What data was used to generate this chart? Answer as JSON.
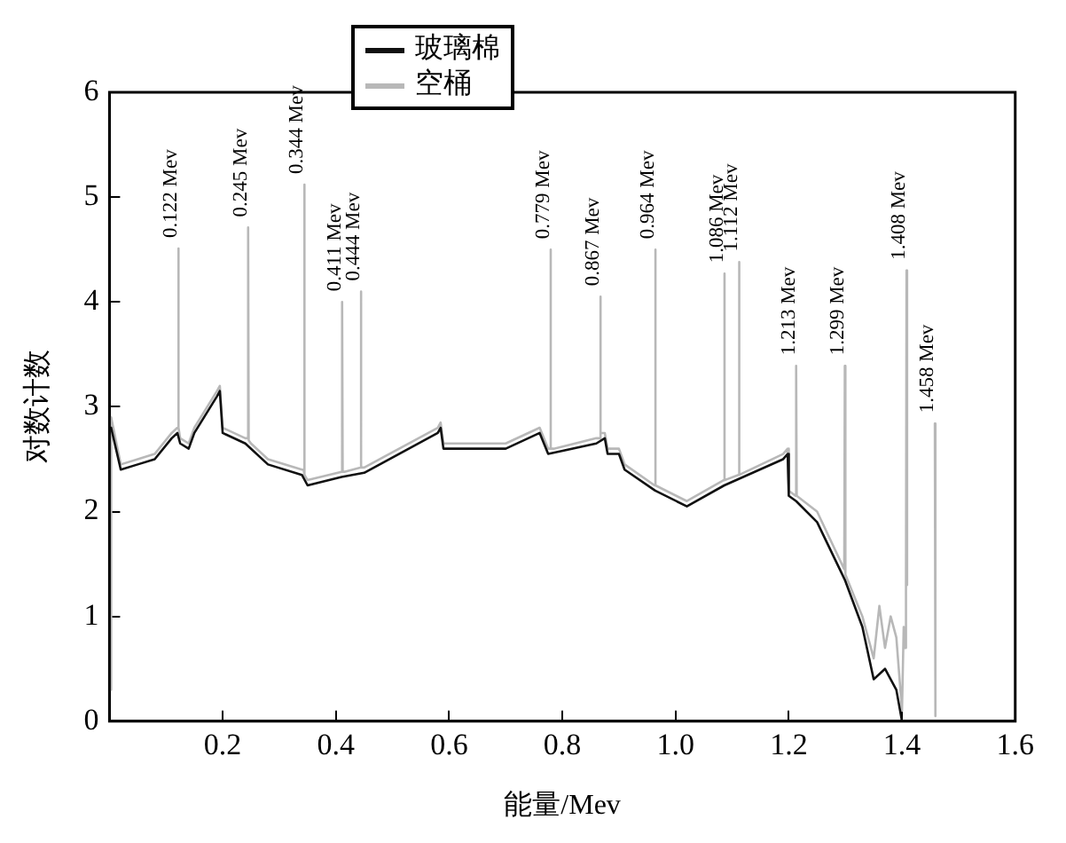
{
  "chart_data": {
    "type": "line",
    "xlabel": "能量/Mev",
    "ylabel": "对数计数",
    "xlim": [
      0,
      1.6
    ],
    "xticks": [
      0.2,
      0.4,
      0.6,
      0.8,
      {
        "value": 1.0,
        "label": "1.0"
      },
      1.2,
      1.4,
      1.6
    ],
    "ylim": [
      0,
      6
    ],
    "yticks": [
      0,
      1,
      2,
      3,
      4,
      5,
      6
    ],
    "grid": false,
    "legend": "top",
    "marker": "none",
    "line_style": "solid",
    "series": [
      {
        "name": "玻璃棉",
        "color": "#111111",
        "x": [
          0.003,
          0.02,
          0.05,
          0.08,
          0.11,
          0.12,
          0.125,
          0.14,
          0.15,
          0.19,
          0.195,
          0.2,
          0.24,
          0.28,
          0.34,
          0.35,
          0.41,
          0.45,
          0.58,
          0.585,
          0.59,
          0.7,
          0.76,
          0.775,
          0.86,
          0.875,
          0.88,
          0.9,
          0.91,
          0.964,
          1.02,
          1.086,
          1.19,
          1.198,
          1.2,
          1.213,
          1.25,
          1.299,
          1.33,
          1.35,
          1.37,
          1.39,
          1.4
        ],
        "values": [
          2.8,
          2.4,
          2.45,
          2.5,
          2.7,
          2.75,
          2.65,
          2.6,
          2.75,
          3.1,
          3.15,
          2.75,
          2.65,
          2.45,
          2.35,
          2.25,
          2.33,
          2.37,
          2.75,
          2.8,
          2.6,
          2.6,
          2.75,
          2.55,
          2.65,
          2.7,
          2.55,
          2.55,
          2.4,
          2.2,
          2.05,
          2.25,
          2.5,
          2.55,
          2.15,
          2.1,
          1.9,
          1.35,
          0.9,
          0.4,
          0.5,
          0.3,
          0.0
        ]
      },
      {
        "name": "空桶",
        "color": "#b8b8b8",
        "x": [
          0.001,
          0.003,
          0.02,
          0.05,
          0.08,
          0.11,
          0.12,
          0.121,
          0.122,
          0.123,
          0.125,
          0.14,
          0.15,
          0.19,
          0.195,
          0.2,
          0.24,
          0.244,
          0.245,
          0.246,
          0.25,
          0.28,
          0.34,
          0.343,
          0.344,
          0.345,
          0.35,
          0.41,
          0.411,
          0.412,
          0.415,
          0.443,
          0.444,
          0.445,
          0.45,
          0.58,
          0.585,
          0.59,
          0.7,
          0.76,
          0.775,
          0.778,
          0.779,
          0.78,
          0.785,
          0.86,
          0.866,
          0.867,
          0.868,
          0.875,
          0.88,
          0.9,
          0.91,
          0.963,
          0.964,
          0.965,
          1.02,
          1.085,
          1.086,
          1.087,
          1.111,
          1.112,
          1.113,
          1.19,
          1.198,
          1.2,
          1.212,
          1.213,
          1.214,
          1.25,
          1.298,
          1.299,
          1.3,
          1.33,
          1.35,
          1.36,
          1.37,
          1.38,
          1.39,
          1.4,
          1.403,
          1.405,
          1.407,
          1.408,
          1.409,
          1.44,
          1.457,
          1.458,
          1.459
        ],
        "values": [
          0.3,
          2.9,
          2.45,
          2.5,
          2.55,
          2.75,
          2.8,
          2.8,
          4.51,
          2.8,
          2.7,
          2.65,
          2.8,
          3.15,
          3.2,
          2.8,
          2.7,
          2.7,
          4.71,
          2.68,
          2.65,
          2.5,
          2.4,
          2.4,
          5.12,
          2.35,
          2.3,
          2.38,
          4.0,
          2.38,
          2.38,
          2.42,
          4.1,
          2.42,
          2.42,
          2.8,
          2.85,
          2.65,
          2.65,
          2.8,
          2.6,
          2.6,
          4.5,
          2.6,
          2.6,
          2.7,
          2.7,
          4.05,
          2.75,
          2.75,
          2.6,
          2.6,
          2.45,
          2.25,
          4.5,
          2.25,
          2.1,
          2.3,
          4.27,
          2.3,
          2.35,
          4.38,
          2.35,
          2.55,
          2.6,
          2.2,
          2.15,
          3.39,
          2.15,
          2.0,
          1.45,
          3.39,
          1.4,
          1.0,
          0.6,
          1.1,
          0.7,
          1.0,
          0.8,
          0.1,
          0.9,
          0.7,
          1.2,
          4.3,
          1.3,
          null,
          null,
          2.84,
          0.05
        ]
      }
    ],
    "annotations": [
      {
        "text": "0.122 Mev",
        "x": 0.122,
        "y": 4.51
      },
      {
        "text": "0.245 Mev",
        "x": 0.245,
        "y": 4.71
      },
      {
        "text": "0.344 Mev",
        "x": 0.344,
        "y": 5.12
      },
      {
        "text": "0.411 Mev",
        "x": 0.411,
        "y": 4.0
      },
      {
        "text": "0.444 Mev",
        "x": 0.444,
        "y": 4.1
      },
      {
        "text": "0.779 Mev",
        "x": 0.779,
        "y": 4.5
      },
      {
        "text": "0.867 Mev",
        "x": 0.867,
        "y": 4.05
      },
      {
        "text": "0.964 Mev",
        "x": 0.964,
        "y": 4.5
      },
      {
        "text": "1.086 Mev",
        "x": 1.086,
        "y": 4.27
      },
      {
        "text": "1.112 Mev",
        "x": 1.112,
        "y": 4.38
      },
      {
        "text": "1.213 Mev",
        "x": 1.213,
        "y": 3.39
      },
      {
        "text": "1.299 Mev",
        "x": 1.299,
        "y": 3.39
      },
      {
        "text": "1.408 Mev",
        "x": 1.408,
        "y": 4.3
      },
      {
        "text": "1.458 Mev",
        "x": 1.458,
        "y": 2.84
      }
    ]
  }
}
